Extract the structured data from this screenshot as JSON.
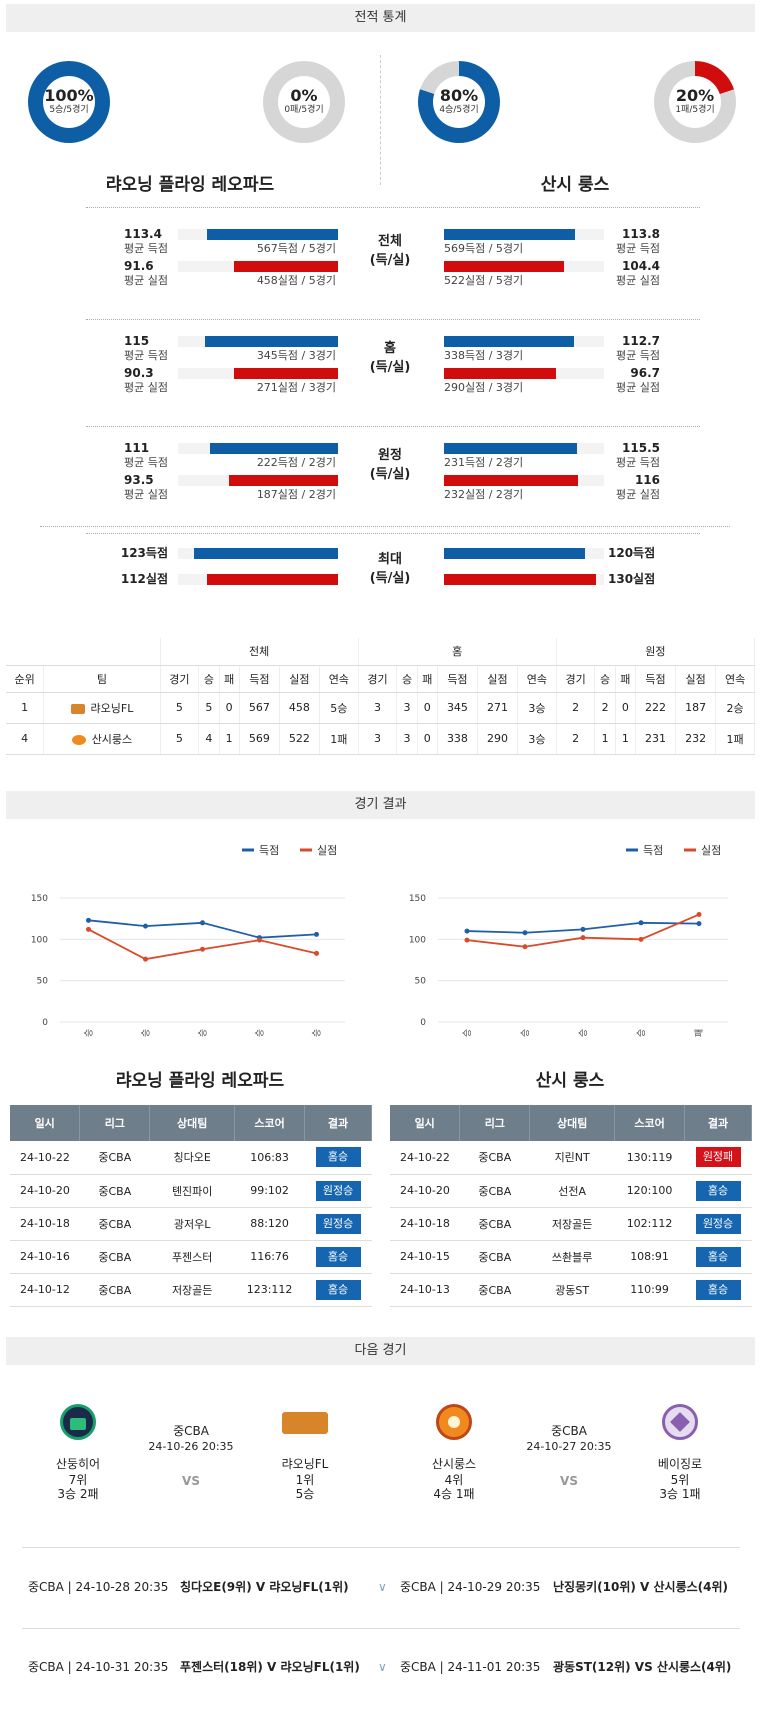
{
  "sections": {
    "stats": "전적 통계",
    "results": "경기 결과",
    "next": "다음 경기"
  },
  "donuts": [
    {
      "pct": "100%",
      "rec": "5승/5경기",
      "fraction": 1.0,
      "color": "#0e5ea6"
    },
    {
      "pct": "0%",
      "rec": "0패/5경기",
      "fraction": 0.0,
      "color": "#d00c0c"
    },
    {
      "pct": "80%",
      "rec": "4승/5경기",
      "fraction": 0.8,
      "color": "#0e5ea6"
    },
    {
      "pct": "20%",
      "rec": "1패/5경기",
      "fraction": 0.2,
      "color": "#d00c0c"
    }
  ],
  "teams": {
    "home": "랴오닝 플라잉 레오파드",
    "away": "산시 룽스"
  },
  "stat_groups": [
    {
      "label1": "전체",
      "label2": "(득/실)",
      "left": [
        {
          "val": "113.4",
          "sub": "평균 득점",
          "count": "567득점 / 5경기",
          "frac": 0.82,
          "color": "blue"
        },
        {
          "val": "91.6",
          "sub": "평균 실점",
          "count": "458실점 / 5경기",
          "frac": 0.65,
          "color": "red"
        }
      ],
      "right": [
        {
          "val": "113.8",
          "sub": "평균 득점",
          "count": "569득점 / 5경기",
          "frac": 0.82,
          "color": "blue"
        },
        {
          "val": "104.4",
          "sub": "평균 실점",
          "count": "522실점 / 5경기",
          "frac": 0.75,
          "color": "red"
        }
      ]
    },
    {
      "label1": "홈",
      "label2": "(득/실)",
      "left": [
        {
          "val": "115",
          "sub": "평균 득점",
          "count": "345득점 / 3경기",
          "frac": 0.83,
          "color": "blue"
        },
        {
          "val": "90.3",
          "sub": "평균 실점",
          "count": "271실점 / 3경기",
          "frac": 0.65,
          "color": "red"
        }
      ],
      "right": [
        {
          "val": "112.7",
          "sub": "평균 득점",
          "count": "338득점 / 3경기",
          "frac": 0.81,
          "color": "blue"
        },
        {
          "val": "96.7",
          "sub": "평균 실점",
          "count": "290실점 / 3경기",
          "frac": 0.7,
          "color": "red"
        }
      ]
    },
    {
      "label1": "원정",
      "label2": "(득/실)",
      "left": [
        {
          "val": "111",
          "sub": "평균 득점",
          "count": "222득점 / 2경기",
          "frac": 0.8,
          "color": "blue"
        },
        {
          "val": "93.5",
          "sub": "평균 실점",
          "count": "187실점 / 2경기",
          "frac": 0.68,
          "color": "red"
        }
      ],
      "right": [
        {
          "val": "115.5",
          "sub": "평균 득점",
          "count": "231득점 / 2경기",
          "frac": 0.83,
          "color": "blue"
        },
        {
          "val": "116",
          "sub": "평균 실점",
          "count": "232실점 / 2경기",
          "frac": 0.84,
          "color": "red"
        }
      ]
    }
  ],
  "max_group": {
    "label1": "최대",
    "label2": "(득/실)",
    "left": [
      {
        "val": "123득점",
        "frac": 0.9,
        "color": "blue"
      },
      {
        "val": "112실점",
        "frac": 0.82,
        "color": "red"
      }
    ],
    "right": [
      {
        "val": "120득점",
        "frac": 0.88,
        "color": "blue"
      },
      {
        "val": "130실점",
        "frac": 0.95,
        "color": "red"
      }
    ]
  },
  "standings": {
    "groups": [
      "전체",
      "홈",
      "원정"
    ],
    "headers": [
      "순위",
      "팀",
      "경기",
      "승",
      "패",
      "득점",
      "실점",
      "연속",
      "경기",
      "승",
      "패",
      "득점",
      "실점",
      "연속",
      "경기",
      "승",
      "패",
      "득점",
      "실점",
      "연속"
    ],
    "rows": [
      [
        "1",
        "랴오닝FL",
        "5",
        "5",
        "0",
        "567",
        "458",
        "5승",
        "3",
        "3",
        "0",
        "345",
        "271",
        "3승",
        "2",
        "2",
        "0",
        "222",
        "187",
        "2승"
      ],
      [
        "4",
        "산시룽스",
        "5",
        "4",
        "1",
        "569",
        "522",
        "1패",
        "3",
        "3",
        "0",
        "338",
        "290",
        "3승",
        "2",
        "1",
        "1",
        "231",
        "232",
        "1패"
      ]
    ]
  },
  "chart_data": [
    {
      "type": "line",
      "categories": [
        "승",
        "승",
        "승",
        "승",
        "승"
      ],
      "ylim": [
        0,
        150
      ],
      "yticks": [
        0,
        50,
        100,
        150
      ],
      "legend": [
        "득점",
        "실점"
      ],
      "legend_position": "top-right",
      "series": [
        {
          "name": "득점",
          "color": "#1f5fa8",
          "values": [
            123,
            116,
            120,
            102,
            106
          ]
        },
        {
          "name": "실점",
          "color": "#d94a2a",
          "values": [
            112,
            76,
            88,
            99,
            83
          ]
        }
      ]
    },
    {
      "type": "line",
      "categories": [
        "승",
        "승",
        "승",
        "승",
        "패"
      ],
      "ylim": [
        0,
        150
      ],
      "yticks": [
        0,
        50,
        100,
        150
      ],
      "legend": [
        "득점",
        "실점"
      ],
      "legend_position": "top-right",
      "series": [
        {
          "name": "득점",
          "color": "#1f5fa8",
          "values": [
            110,
            108,
            112,
            120,
            119
          ]
        },
        {
          "name": "실점",
          "color": "#d94a2a",
          "values": [
            99,
            91,
            102,
            100,
            130
          ]
        }
      ]
    }
  ],
  "results_headers": [
    "일시",
    "리그",
    "상대팀",
    "스코어",
    "결과"
  ],
  "results": [
    {
      "team": "랴오닝 플라잉 레오파드",
      "rows": [
        [
          "24-10-22",
          "중CBA",
          "칭다오E",
          "106:83",
          "홈승",
          "b"
        ],
        [
          "24-10-20",
          "중CBA",
          "톈진파이",
          "99:102",
          "원정승",
          "b"
        ],
        [
          "24-10-18",
          "중CBA",
          "광저우L",
          "88:120",
          "원정승",
          "b"
        ],
        [
          "24-10-16",
          "중CBA",
          "푸젠스터",
          "116:76",
          "홈승",
          "b"
        ],
        [
          "24-10-12",
          "중CBA",
          "저장골든",
          "123:112",
          "홈승",
          "b"
        ]
      ]
    },
    {
      "team": "산시 룽스",
      "rows": [
        [
          "24-10-22",
          "중CBA",
          "지린NT",
          "130:119",
          "원정패",
          "r"
        ],
        [
          "24-10-20",
          "중CBA",
          "선전A",
          "120:100",
          "홈승",
          "b"
        ],
        [
          "24-10-18",
          "중CBA",
          "저장골든",
          "102:112",
          "원정승",
          "b"
        ],
        [
          "24-10-15",
          "중CBA",
          "쓰촨블루",
          "108:91",
          "홈승",
          "b"
        ],
        [
          "24-10-13",
          "중CBA",
          "광동ST",
          "110:99",
          "홈승",
          "b"
        ]
      ]
    }
  ],
  "next_games": [
    {
      "home": "산둥히어",
      "home_rank": "7위",
      "home_rec": "3승 2패",
      "league": "중CBA",
      "date": "24-10-26 20:35",
      "vs": "VS",
      "away": "랴오닝FL",
      "away_rank": "1위",
      "away_rec": "5승"
    },
    {
      "home": "산시룽스",
      "home_rank": "4위",
      "home_rec": "4승 1패",
      "league": "중CBA",
      "date": "24-10-27 20:35",
      "vs": "VS",
      "away": "베이징로",
      "away_rank": "5위",
      "away_rec": "3승 1패"
    }
  ],
  "schedule": [
    {
      "left_info": "중CBA | 24-10-28 20:35",
      "left_match": "칭다오E(9위) V 랴오닝FL(1위)",
      "right_info": "중CBA | 24-10-29 20:35",
      "right_match": "난징몽키(10위) V 산시룽스(4위)"
    },
    {
      "left_info": "중CBA | 24-10-31 20:35",
      "left_match": "푸젠스터(18위) V 랴오닝FL(1위)",
      "right_info": "중CBA | 24-11-01 20:35",
      "right_match": "광동ST(12위) VS 산시룽스(4위)"
    }
  ]
}
